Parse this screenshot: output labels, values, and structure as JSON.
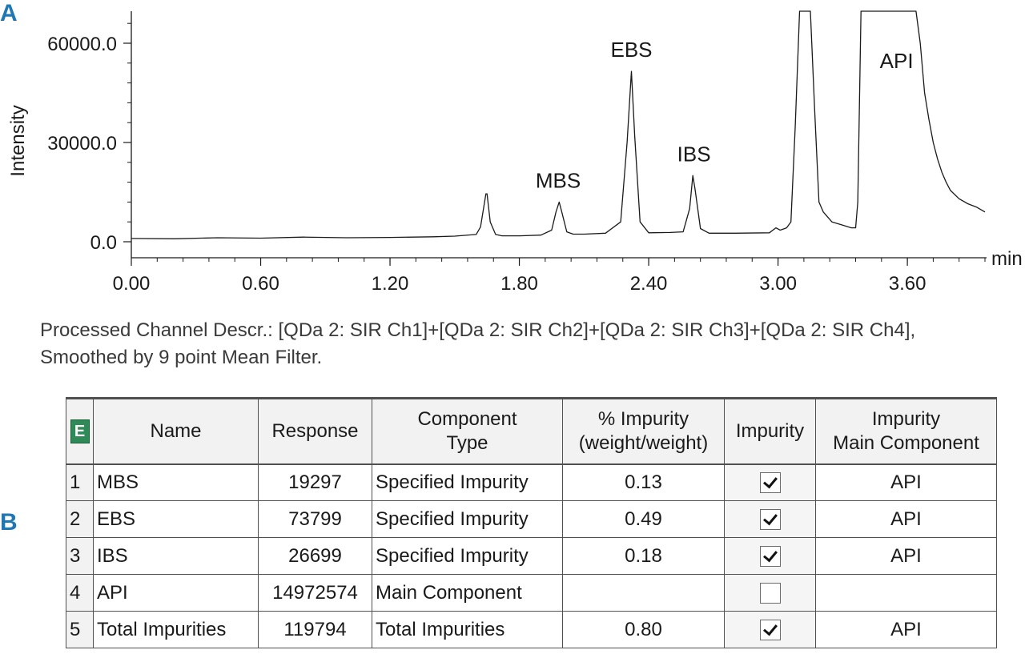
{
  "panel_a_label": "A",
  "panel_b_label": "B",
  "caption": "Processed Channel Descr.: [QDa 2: SIR Ch1]+[QDa 2: SIR Ch2]+[QDa 2: SIR Ch3]+[QDa 2: SIR Ch4], Smoothed by 9 point Mean Filter.",
  "chart_data": {
    "type": "line",
    "title": "",
    "xlabel": "",
    "x_unit_label": "min",
    "ylabel": "Intensity",
    "xlim": [
      0.0,
      3.96
    ],
    "ylim": [
      -4000,
      70000
    ],
    "x_ticks": [
      0.0,
      0.6,
      1.2,
      1.8,
      2.4,
      3.0,
      3.6
    ],
    "x_tick_labels": [
      "0.00",
      "0.60",
      "1.20",
      "1.80",
      "2.40",
      "3.00",
      "3.60"
    ],
    "y_ticks": [
      0,
      30000,
      60000
    ],
    "y_tick_labels": [
      "0.0",
      "30000.0",
      "60000.0"
    ],
    "grid": false,
    "peaks": [
      {
        "label": "MBS",
        "rt": 1.98
      },
      {
        "label": "EBS",
        "rt": 2.32
      },
      {
        "label": "IBS",
        "rt": 2.61
      },
      {
        "label": "API",
        "rt": 3.38
      }
    ],
    "series": [
      {
        "color": "#1a1a1a",
        "x": [
          0.0,
          0.2,
          0.4,
          0.6,
          0.8,
          1.0,
          1.2,
          1.4,
          1.5,
          1.6,
          1.62,
          1.645,
          1.65,
          1.665,
          1.69,
          1.72,
          1.8,
          1.9,
          1.95,
          1.97,
          1.985,
          1.995,
          2.02,
          2.05,
          2.1,
          2.2,
          2.27,
          2.3,
          2.32,
          2.335,
          2.36,
          2.4,
          2.5,
          2.56,
          2.59,
          2.605,
          2.615,
          2.64,
          2.68,
          2.8,
          2.96,
          2.99,
          3.01,
          3.04,
          3.06,
          3.08,
          3.1,
          3.15,
          3.17,
          3.19,
          3.21,
          3.25,
          3.3,
          3.34,
          3.36,
          3.37,
          3.385,
          3.4,
          3.45,
          3.5,
          3.55,
          3.6,
          3.64,
          3.66,
          3.68,
          3.7,
          3.72,
          3.74,
          3.76,
          3.78,
          3.8,
          3.84,
          3.88,
          3.92,
          3.96
        ],
        "y": [
          1000,
          900,
          1200,
          1100,
          1400,
          1200,
          1300,
          1500,
          1700,
          2200,
          4500,
          14500,
          14500,
          6000,
          2200,
          1800,
          1800,
          2000,
          3500,
          9000,
          12000,
          9500,
          3000,
          2300,
          2300,
          2600,
          6000,
          30000,
          51500,
          32000,
          6000,
          2700,
          2800,
          3000,
          10000,
          20000,
          16000,
          4000,
          2600,
          2600,
          2700,
          4200,
          3500,
          4200,
          6000,
          35000,
          75000,
          75000,
          40000,
          12000,
          9000,
          6000,
          5000,
          4200,
          4200,
          12000,
          75000,
          75000,
          75000,
          75000,
          75000,
          75000,
          75000,
          60000,
          45000,
          37000,
          30000,
          25000,
          21000,
          18000,
          15500,
          13000,
          11500,
          10500,
          9000
        ]
      }
    ]
  },
  "table": {
    "corner_icon": "table-menu-icon",
    "corner_icon_glyph": "E",
    "headers": {
      "name": "Name",
      "response": "Response",
      "component_type_line1": "Component",
      "component_type_line2": "Type",
      "pct_impurity_line1": "% Impurity",
      "pct_impurity_line2": "(weight/weight)",
      "impurity": "Impurity",
      "main_component_line1": "Impurity",
      "main_component_line2": "Main Component"
    },
    "rows": [
      {
        "index": "1",
        "name": "MBS",
        "response": "19297",
        "component_type": "Specified Impurity",
        "pct_impurity": "0.13",
        "impurity_checked": true,
        "main_component": "API"
      },
      {
        "index": "2",
        "name": "EBS",
        "response": "73799",
        "component_type": "Specified Impurity",
        "pct_impurity": "0.49",
        "impurity_checked": true,
        "main_component": "API"
      },
      {
        "index": "3",
        "name": "IBS",
        "response": "26699",
        "component_type": "Specified Impurity",
        "pct_impurity": "0.18",
        "impurity_checked": true,
        "main_component": "API"
      },
      {
        "index": "4",
        "name": "API",
        "response": "14972574",
        "component_type": "Main Component",
        "pct_impurity": "",
        "impurity_checked": false,
        "main_component": ""
      },
      {
        "index": "5",
        "name": "Total Impurities",
        "response": "119794",
        "component_type": "Total Impurities",
        "pct_impurity": "0.80",
        "impurity_checked": true,
        "main_component": "API"
      }
    ]
  }
}
